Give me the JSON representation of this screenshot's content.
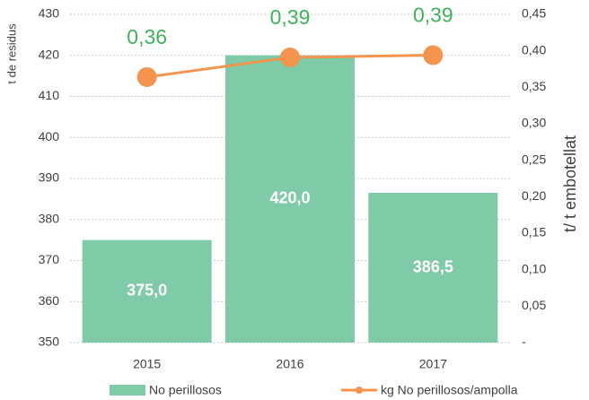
{
  "chart_data": {
    "type": "bar",
    "categories": [
      "2015",
      "2016",
      "2017"
    ],
    "series": [
      {
        "name": "No perillosos",
        "type": "bar",
        "color": "#7fcaa7",
        "values": [
          375,
          420,
          386.5
        ],
        "value_labels": [
          "375,0",
          "420,0",
          "386,5"
        ]
      },
      {
        "name": "kg No perillosos/ampolla",
        "type": "line",
        "axis": "y2",
        "color": "#f4944f",
        "label_color": "#3db35a",
        "values": [
          0.364,
          0.391,
          0.394
        ],
        "value_labels": [
          "0,36",
          "0,39",
          "0,39"
        ]
      }
    ],
    "ylabel": "t de residus",
    "y2label": "t/ t embotellat",
    "ylim": [
      350,
      430
    ],
    "yticks": [
      350,
      360,
      370,
      380,
      390,
      400,
      410,
      420,
      430
    ],
    "y2lim": [
      0,
      0.45
    ],
    "y2ticks": [
      {
        "value": 0,
        "label": "-"
      },
      {
        "value": 0.05,
        "label": "0,05"
      },
      {
        "value": 0.1,
        "label": "0,10"
      },
      {
        "value": 0.15,
        "label": "0,15"
      },
      {
        "value": 0.2,
        "label": "0,20"
      },
      {
        "value": 0.25,
        "label": "0,25"
      },
      {
        "value": 0.3,
        "label": "0,30"
      },
      {
        "value": 0.35,
        "label": "0,35"
      },
      {
        "value": 0.4,
        "label": "0,40"
      },
      {
        "value": 0.45,
        "label": "0,45"
      }
    ],
    "grid": true
  }
}
